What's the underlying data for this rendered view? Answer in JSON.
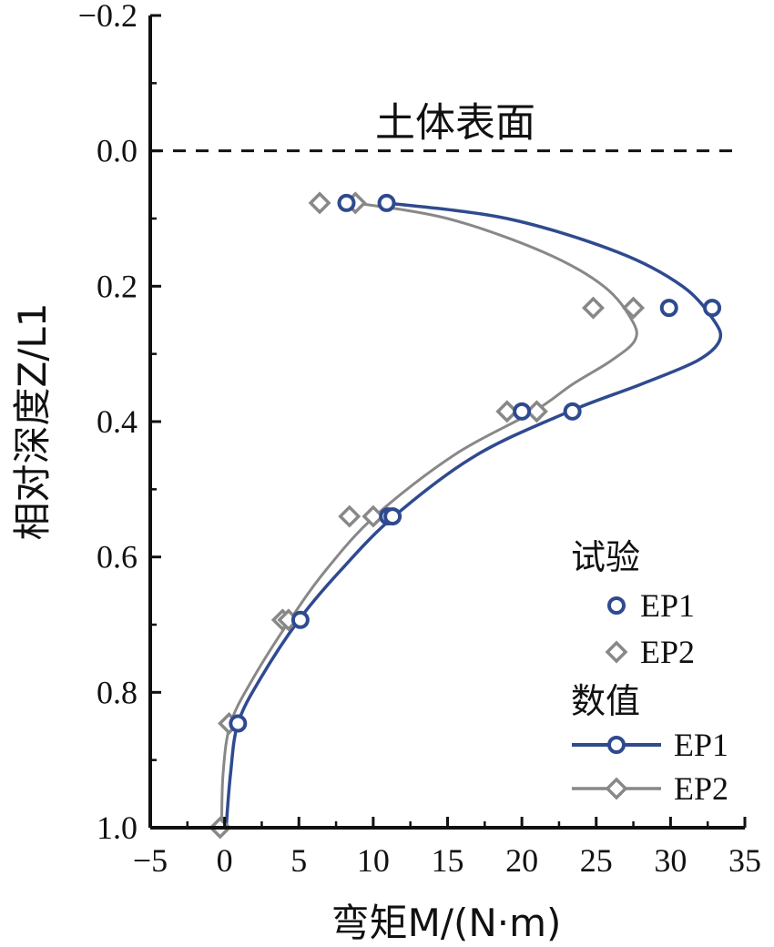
{
  "chart_data": {
    "type": "line",
    "xlabel": "弯矩M/(N·m)",
    "ylabel": "相对深度Z/L1",
    "xlim": [
      -5,
      35
    ],
    "ylim": [
      -0.2,
      1.0
    ],
    "y_inverted": true,
    "xticks": [
      "−5",
      "0",
      "5",
      "10",
      "15",
      "20",
      "25",
      "30",
      "35"
    ],
    "yticks": [
      "−0.2",
      "0.0",
      "0.2",
      "0.4",
      "0.6",
      "0.8",
      "1.0"
    ],
    "annotation": {
      "text": "土体表面",
      "y": 0.0,
      "line_style": "dashed"
    },
    "legend": {
      "placement": "bottom-right",
      "groups": [
        {
          "title": "试验",
          "entries": [
            "EP1",
            "EP2"
          ]
        },
        {
          "title": "数值",
          "entries": [
            "EP1",
            "EP2"
          ]
        }
      ]
    },
    "experimental": [
      {
        "name": "EP1",
        "marker": "circle",
        "color": "#2f4a8f",
        "points": [
          [
            8.2,
            0.077
          ],
          [
            10.9,
            0.077
          ],
          [
            29.9,
            0.232
          ],
          [
            32.8,
            0.232
          ],
          [
            20.0,
            0.385
          ],
          [
            23.4,
            0.385
          ],
          [
            11.0,
            0.54
          ],
          [
            11.3,
            0.54
          ],
          [
            5.1,
            0.693
          ],
          [
            0.9,
            0.846
          ]
        ]
      },
      {
        "name": "EP2",
        "marker": "diamond",
        "color": "#888888",
        "points": [
          [
            6.4,
            0.077
          ],
          [
            8.8,
            0.077
          ],
          [
            24.8,
            0.232
          ],
          [
            27.5,
            0.232
          ],
          [
            19.0,
            0.385
          ],
          [
            21.0,
            0.385
          ],
          [
            8.4,
            0.54
          ],
          [
            10.0,
            0.54
          ],
          [
            3.9,
            0.693
          ],
          [
            4.3,
            0.693
          ],
          [
            0.3,
            0.846
          ],
          [
            -0.3,
            1.0
          ]
        ]
      }
    ],
    "numerical": [
      {
        "name": "EP1",
        "color": "#2f4a8f",
        "points": [
          [
            10.9,
            0.077
          ],
          [
            19.0,
            0.1
          ],
          [
            26.5,
            0.15
          ],
          [
            30.8,
            0.2
          ],
          [
            32.9,
            0.25
          ],
          [
            33.3,
            0.28
          ],
          [
            31.8,
            0.31
          ],
          [
            28.0,
            0.345
          ],
          [
            23.2,
            0.385
          ],
          [
            16.9,
            0.45
          ],
          [
            11.4,
            0.54
          ],
          [
            7.8,
            0.62
          ],
          [
            5.0,
            0.693
          ],
          [
            2.4,
            0.78
          ],
          [
            0.9,
            0.846
          ],
          [
            0.4,
            0.92
          ],
          [
            0.1,
            1.0
          ]
        ]
      },
      {
        "name": "EP2",
        "color": "#888888",
        "points": [
          [
            8.8,
            0.077
          ],
          [
            15.0,
            0.1
          ],
          [
            21.5,
            0.15
          ],
          [
            25.5,
            0.2
          ],
          [
            27.4,
            0.25
          ],
          [
            27.6,
            0.28
          ],
          [
            26.0,
            0.31
          ],
          [
            23.4,
            0.345
          ],
          [
            20.8,
            0.385
          ],
          [
            15.4,
            0.45
          ],
          [
            10.1,
            0.54
          ],
          [
            6.8,
            0.62
          ],
          [
            4.4,
            0.693
          ],
          [
            1.9,
            0.78
          ],
          [
            0.4,
            0.846
          ],
          [
            -0.1,
            0.92
          ],
          [
            -0.2,
            1.0
          ]
        ]
      }
    ]
  }
}
